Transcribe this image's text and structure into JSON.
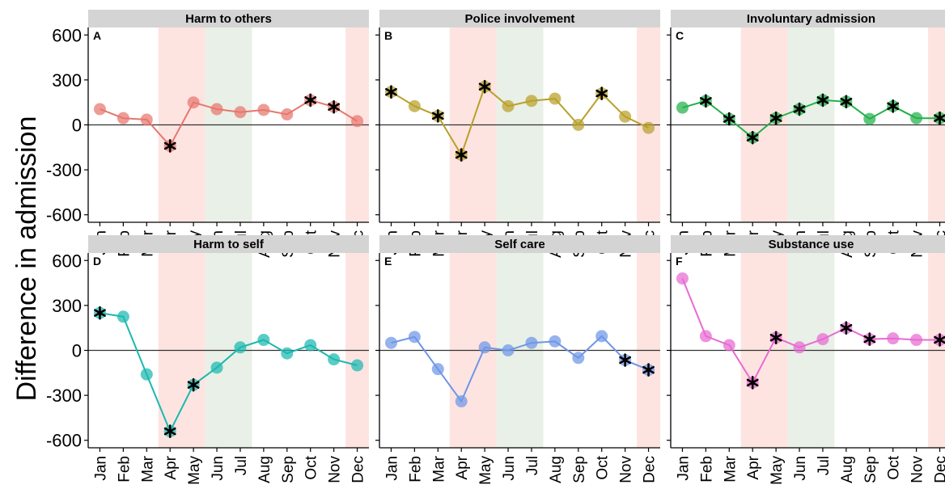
{
  "ylabel": "Difference in admission",
  "colors": {
    "strip_bg": "#d4d4d4",
    "shade_red": "#fde4e1",
    "shade_green": "#e9f0e7",
    "zero_line": "#333333",
    "asterisk": "#000000"
  },
  "chart_data": [
    {
      "type": "line",
      "title": "Harm to others",
      "letter": "A",
      "color": "#e7766d",
      "categories": [
        "Jan",
        "Feb",
        "Mar",
        "Apr",
        "May",
        "Jun",
        "Jul",
        "Aug",
        "Sep",
        "Oct",
        "Nov",
        "Dec"
      ],
      "values": [
        105,
        45,
        35,
        -140,
        150,
        105,
        85,
        100,
        70,
        165,
        120,
        25
      ],
      "significant": [
        false,
        false,
        false,
        true,
        false,
        false,
        false,
        false,
        false,
        true,
        true,
        false
      ],
      "ylim": [
        -650,
        650
      ],
      "yticks": [
        600,
        300,
        0,
        -300,
        -600
      ],
      "shaded_red": [
        [
          "Apr",
          "May"
        ],
        [
          "Dec",
          "Dec"
        ]
      ],
      "shaded_green": [
        [
          "Jun",
          "Jul"
        ]
      ]
    },
    {
      "type": "line",
      "title": "Police involvement",
      "letter": "B",
      "color": "#b9a02a",
      "categories": [
        "Jan",
        "Feb",
        "Mar",
        "Apr",
        "May",
        "Jun",
        "Jul",
        "Aug",
        "Sep",
        "Oct",
        "Nov",
        "Dec"
      ],
      "values": [
        220,
        125,
        60,
        -200,
        255,
        125,
        160,
        175,
        0,
        210,
        55,
        -20
      ],
      "significant": [
        true,
        false,
        true,
        true,
        true,
        false,
        false,
        false,
        false,
        true,
        false,
        false
      ],
      "ylim": [
        -650,
        650
      ],
      "yticks": [
        600,
        300,
        0,
        -300,
        -600
      ],
      "shaded_red": [
        [
          "Apr",
          "May"
        ],
        [
          "Dec",
          "Dec"
        ]
      ],
      "shaded_green": [
        [
          "Jun",
          "Jul"
        ]
      ]
    },
    {
      "type": "line",
      "title": "Involuntary admission",
      "letter": "C",
      "color": "#21b14a",
      "categories": [
        "Jan",
        "Feb",
        "Mar",
        "Apr",
        "May",
        "Jun",
        "Jul",
        "Aug",
        "Sep",
        "Oct",
        "Nov",
        "Dec"
      ],
      "values": [
        115,
        160,
        40,
        -85,
        45,
        105,
        165,
        155,
        40,
        125,
        45,
        45
      ],
      "significant": [
        false,
        true,
        true,
        true,
        true,
        true,
        true,
        true,
        false,
        true,
        false,
        true
      ],
      "ylim": [
        -650,
        650
      ],
      "yticks": [
        600,
        300,
        0,
        -300,
        -600
      ],
      "shaded_red": [
        [
          "Apr",
          "May"
        ],
        [
          "Dec",
          "Dec"
        ]
      ],
      "shaded_green": [
        [
          "Jun",
          "Jul"
        ]
      ]
    },
    {
      "type": "line",
      "title": "Harm to self",
      "letter": "D",
      "color": "#1ab8b0",
      "categories": [
        "Jan",
        "Feb",
        "Mar",
        "Apr",
        "May",
        "Jun",
        "Jul",
        "Aug",
        "Sep",
        "Oct",
        "Nov",
        "Dec"
      ],
      "values": [
        250,
        225,
        -160,
        -540,
        -230,
        -115,
        20,
        70,
        -20,
        35,
        -60,
        -100
      ],
      "significant": [
        true,
        false,
        false,
        true,
        true,
        false,
        false,
        false,
        false,
        false,
        false,
        false
      ],
      "ylim": [
        -650,
        650
      ],
      "yticks": [
        600,
        300,
        0,
        -300,
        -600
      ],
      "shaded_red": [
        [
          "Apr",
          "May"
        ],
        [
          "Dec",
          "Dec"
        ]
      ],
      "shaded_green": [
        [
          "Jun",
          "Jul"
        ]
      ]
    },
    {
      "type": "line",
      "title": "Self care",
      "letter": "E",
      "color": "#6e96e6",
      "categories": [
        "Jan",
        "Feb",
        "Mar",
        "Apr",
        "May",
        "Jun",
        "Jul",
        "Aug",
        "Sep",
        "Oct",
        "Nov",
        "Dec"
      ],
      "values": [
        50,
        90,
        -125,
        -340,
        20,
        0,
        50,
        60,
        -50,
        95,
        -65,
        -130
      ],
      "significant": [
        false,
        false,
        false,
        false,
        false,
        false,
        false,
        false,
        false,
        false,
        true,
        true
      ],
      "ylim": [
        -650,
        650
      ],
      "yticks": [
        600,
        300,
        0,
        -300,
        -600
      ],
      "shaded_red": [
        [
          "Apr",
          "May"
        ],
        [
          "Dec",
          "Dec"
        ]
      ],
      "shaded_green": [
        [
          "Jun",
          "Jul"
        ]
      ]
    },
    {
      "type": "line",
      "title": "Substance use",
      "letter": "F",
      "color": "#e86ad3",
      "categories": [
        "Jan",
        "Feb",
        "Mar",
        "Apr",
        "May",
        "Jun",
        "Jul",
        "Aug",
        "Sep",
        "Oct",
        "Nov",
        "Dec"
      ],
      "values": [
        480,
        95,
        35,
        -215,
        85,
        20,
        75,
        150,
        75,
        80,
        70,
        70
      ],
      "significant": [
        false,
        false,
        false,
        true,
        true,
        false,
        false,
        true,
        true,
        false,
        false,
        true
      ],
      "ylim": [
        -650,
        650
      ],
      "yticks": [
        600,
        300,
        0,
        -300,
        -600
      ],
      "shaded_red": [
        [
          "Apr",
          "May"
        ],
        [
          "Dec",
          "Dec"
        ]
      ],
      "shaded_green": [
        [
          "Jun",
          "Jul"
        ]
      ]
    }
  ]
}
